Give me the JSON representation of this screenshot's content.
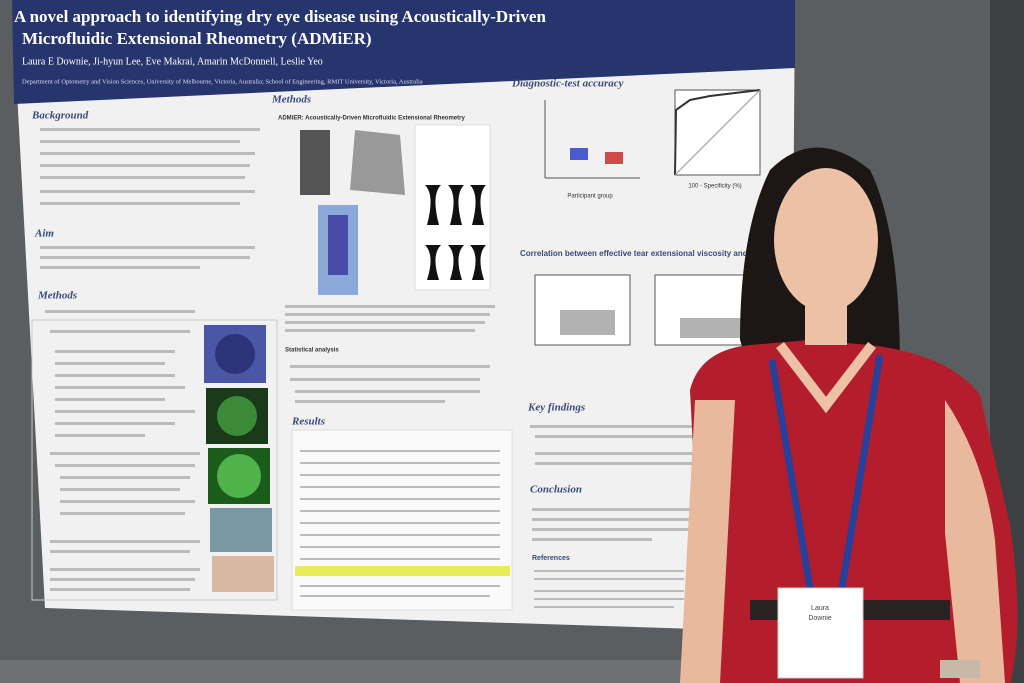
{
  "poster": {
    "title_lines": [
      "A novel approach to identifying dry eye disease using Acoustically-Driven",
      "Microfluidic Extensional Rheometry (ADMiER)"
    ],
    "authors": "Laura E Downie, Ji-hyun Lee, Eve Makrai, Amarin McDonnell, Leslie Yeo",
    "affiliations": "Department of Optometry and Vision Sciences, University of Melbourne, Victoria, Australia; School of Engineering, RMIT University, Victoria, Australia",
    "left_headings": [
      "Background",
      "Aim",
      "Methods"
    ],
    "mid_headings": [
      "Methods",
      "ADMiER: Acoustically-Driven Microfluidic Extensional Rheometry",
      "Statistical analysis",
      "Results"
    ],
    "right_headings": [
      "Diagnostic-test accuracy",
      "Correlation between effective tear extensional viscosity and clinical parameters",
      "Key findings",
      "Conclusion",
      "References"
    ],
    "axis_label": "Participant group",
    "roc_label": "100 - Specificity (%)"
  },
  "badge": {
    "name_lines": [
      "Laura",
      "Downie"
    ]
  }
}
